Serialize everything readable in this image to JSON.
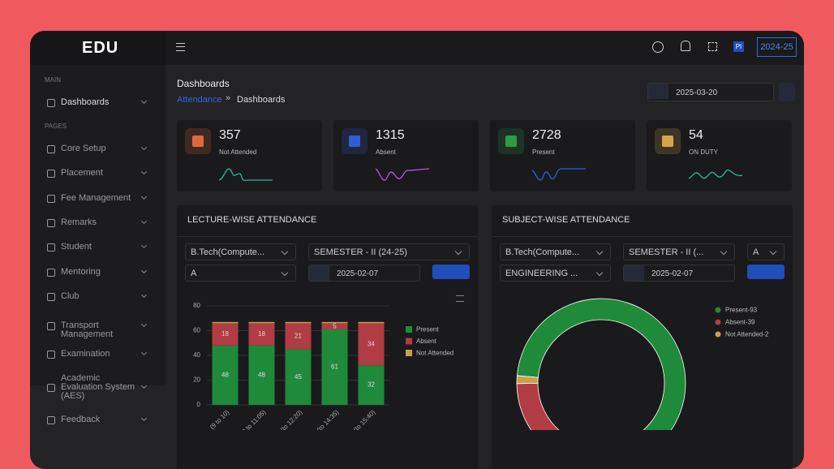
{
  "brand": "EDU",
  "topbar": {
    "avatar": "PI",
    "year": "2024-25"
  },
  "sidebar": {
    "sections": [
      {
        "title": "MAIN",
        "items": [
          "Dashboards"
        ]
      },
      {
        "title": "PAGES",
        "items": [
          "Core Setup",
          "Placement",
          "Fee Management",
          "Remarks",
          "Student",
          "Mentoring",
          "Club",
          "Transport Management",
          "Examination",
          "Academic Evaluation System (AES)",
          "Feedback"
        ]
      }
    ]
  },
  "header": {
    "title": "Dashboards",
    "breadcrumb": [
      "Attendance",
      "Dashboards"
    ],
    "date": "2025-03-20"
  },
  "stats": [
    {
      "value": 357,
      "label": "Not Attended"
    },
    {
      "value": 1315,
      "label": "Absent"
    },
    {
      "value": 2728,
      "label": "Present"
    },
    {
      "value": 54,
      "label": "ON DUTY"
    }
  ],
  "lecture": {
    "title": "LECTURE-WISE ATTENDANCE",
    "filters": [
      "B.Tech(Compute...",
      "SEMESTER - II (24-25)",
      "A"
    ],
    "date": "2025-02-07"
  },
  "subject": {
    "title": "SUBJECT-WISE ATTENDANCE",
    "filters": [
      "B.Tech(Compute...",
      "SEMESTER - II (...",
      "A",
      "ENGINEERING ..."
    ],
    "date": "2025-02-07"
  },
  "chart_data": [
    {
      "type": "bar",
      "stacked": true,
      "categories": [
        "(9 to 10)",
        "(0 to 11:05)",
        "(to 12:20)",
        "(to 14:35)",
        "(to 15:40)"
      ],
      "series": [
        {
          "name": "Present",
          "color": "#1f8a3a",
          "values": [
            48,
            48,
            45,
            61,
            32
          ]
        },
        {
          "name": "Absent",
          "color": "#b13c43",
          "values": [
            18,
            18,
            21,
            5,
            34
          ]
        },
        {
          "name": "Not Attended",
          "color": "#c9a04c",
          "values": [
            1,
            1,
            1,
            1,
            1
          ]
        }
      ],
      "ylim": [
        0,
        80
      ],
      "yticks": [
        0,
        20,
        40,
        60,
        80
      ],
      "legend": "right"
    },
    {
      "type": "pie",
      "donut": true,
      "categories": [
        "Present-93",
        "Absent-39",
        "Not Attended-2"
      ],
      "values": [
        93,
        39,
        2
      ],
      "colors": [
        "#1f8a3a",
        "#b13c43",
        "#c9a04c"
      ],
      "legend": "right"
    }
  ]
}
